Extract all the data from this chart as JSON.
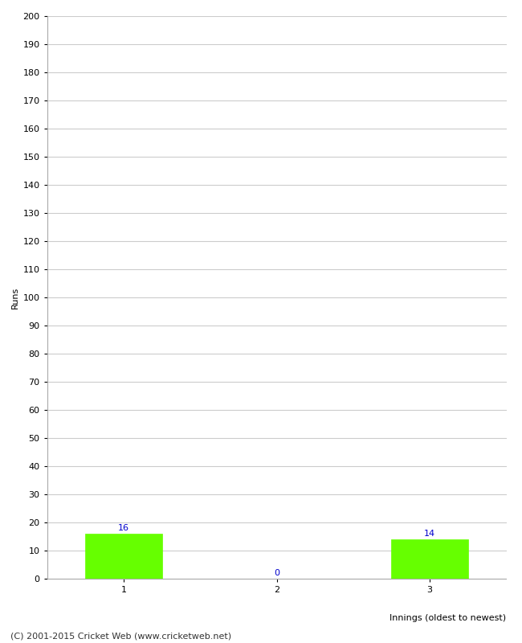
{
  "categories": [
    1,
    2,
    3
  ],
  "values": [
    16,
    0,
    14
  ],
  "bar_color": "#66ff00",
  "bar_edge_color": "#66ff00",
  "label_color": "#0000cc",
  "ylabel": "Runs",
  "xlabel": "Innings (oldest to newest)",
  "ylim": [
    0,
    200
  ],
  "yticks": [
    0,
    10,
    20,
    30,
    40,
    50,
    60,
    70,
    80,
    90,
    100,
    110,
    120,
    130,
    140,
    150,
    160,
    170,
    180,
    190,
    200
  ],
  "background_color": "#ffffff",
  "grid_color": "#cccccc",
  "footer": "(C) 2001-2015 Cricket Web (www.cricketweb.net)",
  "bar_width": 0.5,
  "value_fontsize": 8,
  "axis_label_fontsize": 8,
  "tick_fontsize": 8,
  "footer_fontsize": 8
}
